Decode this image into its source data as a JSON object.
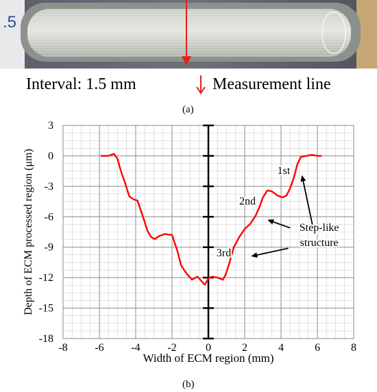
{
  "top_panel": {
    "photo_label": ".5",
    "interval_text": "Interval: 1.5 mm",
    "legend_text": "Measurement line",
    "panel_label": "(a)"
  },
  "colors": {
    "profile": "#ff0000",
    "marker": "#e8201a",
    "grid_minor": "#cfcfcf",
    "grid_major": "#8a8a8a",
    "axis": "#000000"
  },
  "chart_data": {
    "type": "line",
    "xlabel": "Width of ECM region (mm)",
    "ylabel": "Depth of ECM processed region (μm)",
    "xlim": [
      -8,
      8
    ],
    "ylim": [
      -18,
      3
    ],
    "xticks": [
      -8,
      -6,
      -4,
      -2,
      0,
      2,
      4,
      6,
      8
    ],
    "yticks": [
      3,
      0,
      -3,
      -6,
      -9,
      -12,
      -15,
      -18
    ],
    "grid": true,
    "series": [
      {
        "name": "",
        "color": "#ff0000",
        "x": [
          -5.9,
          -5.5,
          -5.2,
          -5.0,
          -4.85,
          -4.6,
          -4.35,
          -4.1,
          -3.9,
          -3.6,
          -3.35,
          -3.15,
          -2.95,
          -2.7,
          -2.4,
          -2.0,
          -1.7,
          -1.5,
          -1.2,
          -0.9,
          -0.6,
          -0.4,
          -0.2,
          0.0,
          0.2,
          0.5,
          0.8,
          0.95,
          1.15,
          1.4,
          1.7,
          2.0,
          2.3,
          2.6,
          2.8,
          3.0,
          3.25,
          3.5,
          3.8,
          4.1,
          4.3,
          4.5,
          4.7,
          4.9,
          5.1,
          5.4,
          5.7,
          6.0,
          6.2
        ],
        "y": [
          0.0,
          0.0,
          0.2,
          -0.3,
          -1.3,
          -2.6,
          -4.0,
          -4.3,
          -4.4,
          -6.0,
          -7.4,
          -8.0,
          -8.2,
          -7.9,
          -7.7,
          -7.8,
          -9.4,
          -10.8,
          -11.6,
          -12.2,
          -11.9,
          -12.3,
          -12.7,
          -12.1,
          -11.9,
          -12.0,
          -12.2,
          -11.7,
          -10.6,
          -9.0,
          -8.0,
          -7.2,
          -6.7,
          -5.9,
          -5.1,
          -4.1,
          -3.4,
          -3.5,
          -3.9,
          -4.1,
          -3.9,
          -3.2,
          -2.2,
          -0.8,
          -0.1,
          0.0,
          0.1,
          0.0,
          0.0
        ]
      }
    ],
    "annotations": [
      {
        "text": "1st",
        "x": 4.15,
        "y": -1.8
      },
      {
        "text": "2nd",
        "x": 2.15,
        "y": -4.8
      },
      {
        "text": "3rd",
        "x": 0.85,
        "y": -9.9
      },
      {
        "text": "Step-like",
        "x": 6.1,
        "y": -7.4
      },
      {
        "text": "structure",
        "x": 6.1,
        "y": -8.9
      }
    ],
    "arrows": [
      {
        "from": [
          5.8,
          -7.4
        ],
        "to": [
          5.15,
          -1.9
        ]
      },
      {
        "from": [
          4.5,
          -7.1
        ],
        "to": [
          3.25,
          -6.3
        ]
      },
      {
        "from": [
          4.4,
          -9.1
        ],
        "to": [
          2.35,
          -9.9
        ]
      }
    ],
    "panel_label": "(b)"
  }
}
